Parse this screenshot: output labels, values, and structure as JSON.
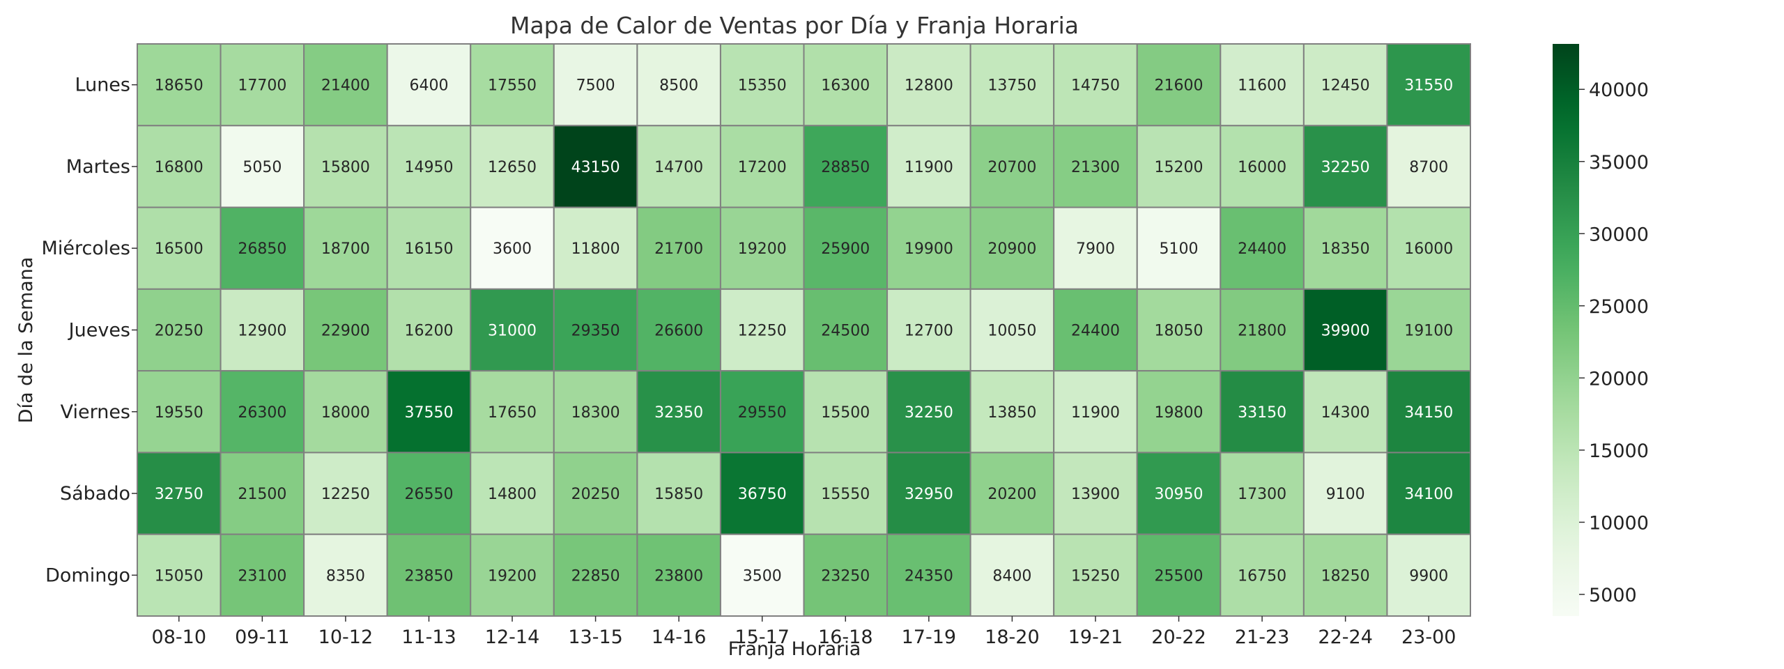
{
  "chart_data": {
    "type": "heatmap",
    "title": "Mapa de Calor de Ventas por Día y Franja Horaria",
    "xlabel": "Franja Horaria",
    "ylabel": "Día de la Semana",
    "x": [
      "08-10",
      "09-11",
      "10-12",
      "11-13",
      "12-14",
      "13-15",
      "14-16",
      "15-17",
      "16-18",
      "17-19",
      "18-20",
      "19-21",
      "20-22",
      "21-23",
      "22-24",
      "23-00"
    ],
    "y": [
      "Lunes",
      "Martes",
      "Miércoles",
      "Jueves",
      "Viernes",
      "Sábado",
      "Domingo"
    ],
    "values": [
      [
        18650,
        17700,
        21400,
        6400,
        17550,
        7500,
        8500,
        15350,
        16300,
        12800,
        13750,
        14750,
        21600,
        11600,
        12450,
        31550
      ],
      [
        16800,
        5050,
        15800,
        14950,
        12650,
        43150,
        14700,
        17200,
        28850,
        11900,
        20700,
        21300,
        15200,
        16000,
        32250,
        8700
      ],
      [
        16500,
        26850,
        18700,
        16150,
        3600,
        11800,
        21700,
        19200,
        25900,
        19900,
        20900,
        7900,
        5100,
        24400,
        18350,
        16000
      ],
      [
        20250,
        12900,
        22900,
        16200,
        31000,
        29350,
        26600,
        12250,
        24500,
        12700,
        10050,
        24400,
        18050,
        21800,
        39900,
        19100
      ],
      [
        19550,
        26300,
        18000,
        37550,
        17650,
        18300,
        32350,
        29550,
        15500,
        32250,
        13850,
        11900,
        19800,
        33150,
        14300,
        34150
      ],
      [
        32750,
        21500,
        12250,
        26550,
        14800,
        20250,
        15850,
        36750,
        15550,
        32950,
        20200,
        13900,
        30950,
        17300,
        9100,
        34100
      ],
      [
        15050,
        23100,
        8350,
        23850,
        19200,
        22850,
        23800,
        3500,
        23250,
        24350,
        8400,
        15250,
        25500,
        16750,
        18250,
        9900
      ]
    ],
    "colormap": "Greens",
    "colorbar": {
      "range": [
        3500,
        43150
      ],
      "ticks": [
        5000,
        10000,
        15000,
        20000,
        25000,
        30000,
        35000,
        40000
      ]
    },
    "annotations": "cell values shown"
  }
}
